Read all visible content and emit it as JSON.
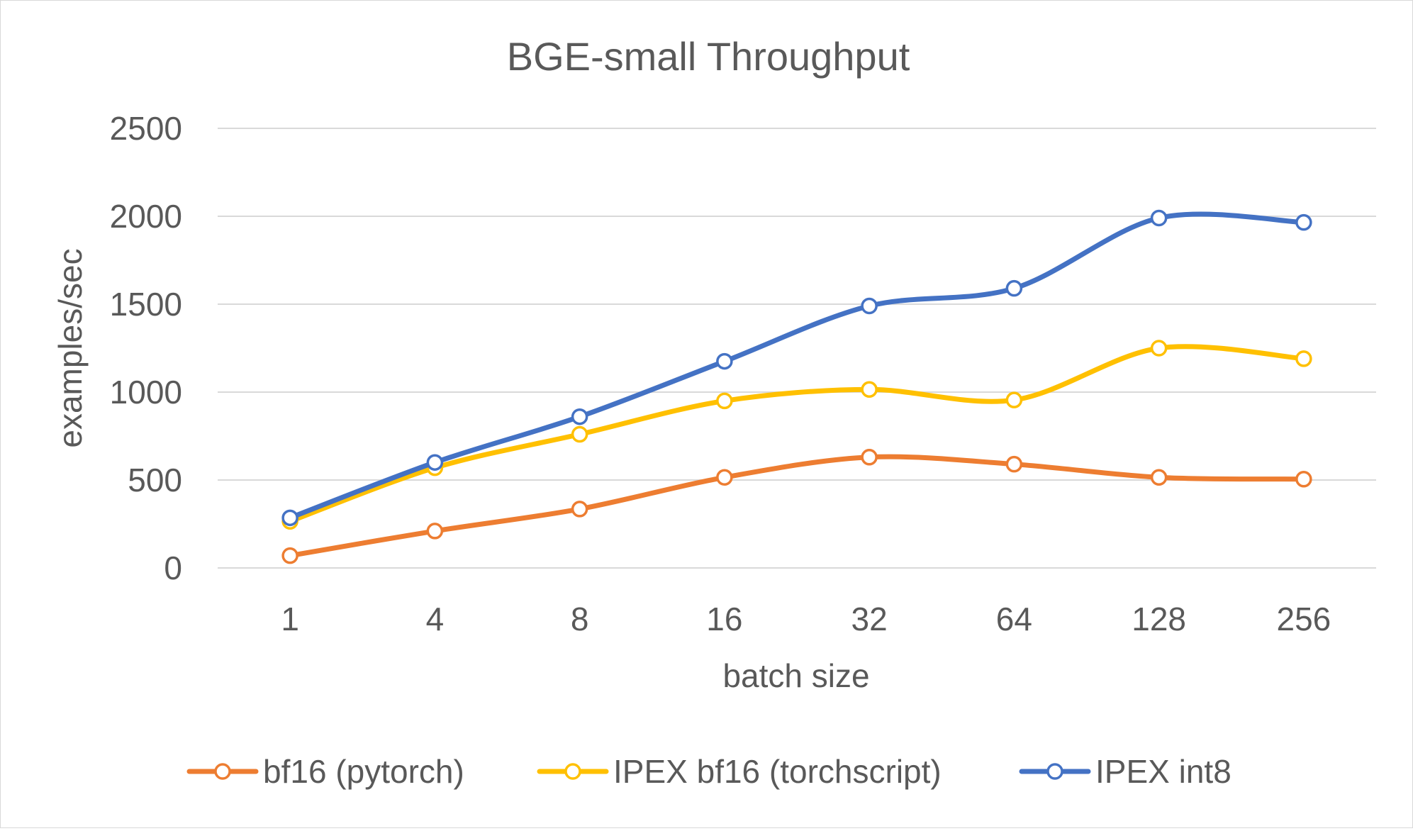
{
  "chart_data": {
    "type": "line",
    "title": "BGE-small Throughput",
    "xlabel": "batch size",
    "ylabel": "examples/sec",
    "categories": [
      "1",
      "4",
      "8",
      "16",
      "32",
      "64",
      "128",
      "256"
    ],
    "ylim": [
      0,
      2500
    ],
    "yticks": [
      "0",
      "500",
      "1000",
      "1500",
      "2000",
      "2500"
    ],
    "grid": true,
    "legend_position": "bottom",
    "series": [
      {
        "name": "bf16 (pytorch)",
        "color": "#ED7D31",
        "values": [
          70,
          210,
          335,
          515,
          630,
          590,
          515,
          505
        ]
      },
      {
        "name": "IPEX bf16 (torchscript)",
        "color": "#FFC000",
        "values": [
          265,
          570,
          760,
          950,
          1015,
          955,
          1250,
          1190
        ]
      },
      {
        "name": "IPEX int8",
        "color": "#4472C4",
        "values": [
          285,
          600,
          860,
          1175,
          1490,
          1590,
          1990,
          1965
        ]
      }
    ]
  }
}
